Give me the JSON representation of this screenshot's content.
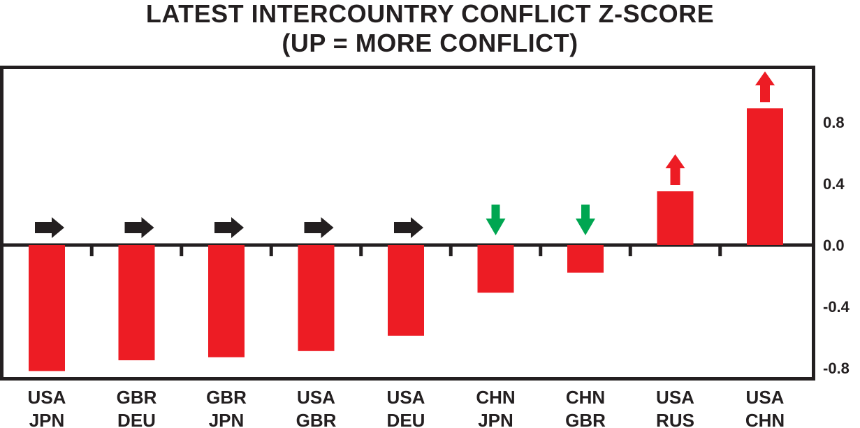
{
  "title": {
    "line1": "LATEST INTERCOUNTRY CONFLICT Z-SCORE",
    "line2": "(UP = MORE CONFLICT)"
  },
  "colors": {
    "bar": "#ed1c24",
    "arrow_up": "#ed1c24",
    "arrow_down": "#00a651",
    "arrow_flat": "#231f20",
    "frame": "#231f20"
  },
  "chart_data": {
    "type": "bar",
    "title": "LATEST INTERCOUNTRY CONFLICT Z-SCORE (UP = MORE CONFLICT)",
    "xlabel": "",
    "ylabel": "",
    "ylim": [
      -0.9,
      1.15
    ],
    "yticks": [
      {
        "value": 0.8,
        "label": "0.8"
      },
      {
        "value": 0.4,
        "label": "0.4"
      },
      {
        "value": 0.0,
        "label": "0.0"
      },
      {
        "value": -0.4,
        "label": "-0.4"
      },
      {
        "value": -0.8,
        "label": "-0.8"
      }
    ],
    "y_axis_position": "right",
    "grid": false,
    "categories": [
      {
        "line1": "USA",
        "line2": "JPN"
      },
      {
        "line1": "GBR",
        "line2": "DEU"
      },
      {
        "line1": "GBR",
        "line2": "JPN"
      },
      {
        "line1": "USA",
        "line2": "GBR"
      },
      {
        "line1": "USA",
        "line2": "DEU"
      },
      {
        "line1": "CHN",
        "line2": "JPN"
      },
      {
        "line1": "CHN",
        "line2": "GBR"
      },
      {
        "line1": "USA",
        "line2": "RUS"
      },
      {
        "line1": "USA",
        "line2": "CHN"
      }
    ],
    "values": [
      -0.82,
      -0.75,
      -0.73,
      -0.69,
      -0.59,
      -0.31,
      -0.18,
      0.35,
      0.89
    ],
    "trend_arrows": [
      "right",
      "right",
      "right",
      "right",
      "right",
      "down",
      "down",
      "up",
      "up"
    ]
  }
}
